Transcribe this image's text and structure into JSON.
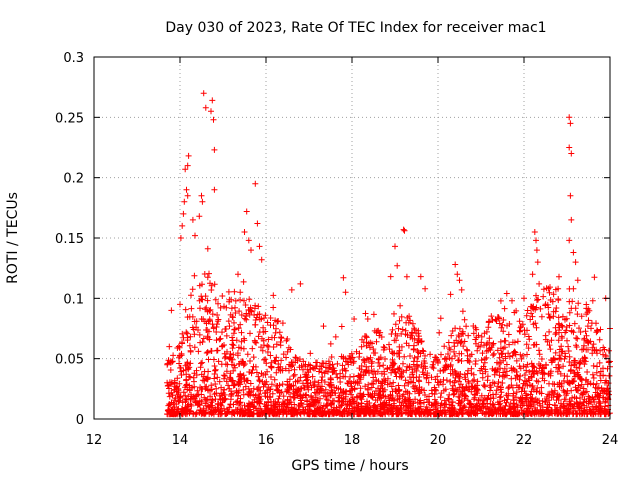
{
  "chart_data": {
    "type": "scatter",
    "title": "Day 030 of 2023, Rate Of TEC Index for receiver mac1",
    "xlabel": "GPS time / hours",
    "ylabel": "ROTI / TECUs",
    "xlim": [
      12,
      24
    ],
    "ylim": [
      0,
      0.3
    ],
    "xticks": [
      12,
      14,
      16,
      18,
      20,
      22,
      24
    ],
    "xtick_labels": [
      "12",
      "14",
      "16",
      "18",
      "20",
      "22",
      "24"
    ],
    "yticks": [
      0,
      0.05,
      0.1,
      0.15,
      0.2,
      0.25,
      0.3
    ],
    "ytick_labels": [
      "0",
      "0.05",
      "0.1",
      "0.15",
      "0.2",
      "0.25",
      "0.3"
    ],
    "grid": true,
    "marker": "+",
    "color": "#ff0000",
    "x_start": 13.7,
    "x_end": 24.0,
    "series": [
      {
        "name": "ROTI",
        "points": [
          [
            14.55,
            0.27
          ],
          [
            14.6,
            0.258
          ],
          [
            14.75,
            0.264
          ],
          [
            14.72,
            0.255
          ],
          [
            14.78,
            0.248
          ],
          [
            14.8,
            0.223
          ],
          [
            14.8,
            0.19
          ],
          [
            14.2,
            0.218
          ],
          [
            14.18,
            0.21
          ],
          [
            14.12,
            0.207
          ],
          [
            14.15,
            0.19
          ],
          [
            14.18,
            0.185
          ],
          [
            14.1,
            0.18
          ],
          [
            14.08,
            0.17
          ],
          [
            14.05,
            0.16
          ],
          [
            14.02,
            0.15
          ],
          [
            14.5,
            0.185
          ],
          [
            14.52,
            0.18
          ],
          [
            14.45,
            0.168
          ],
          [
            14.3,
            0.165
          ],
          [
            14.35,
            0.152
          ],
          [
            15.75,
            0.195
          ],
          [
            15.55,
            0.172
          ],
          [
            15.8,
            0.162
          ],
          [
            15.5,
            0.155
          ],
          [
            15.6,
            0.148
          ],
          [
            15.85,
            0.143
          ],
          [
            15.9,
            0.132
          ],
          [
            15.65,
            0.14
          ],
          [
            19.2,
            0.157
          ],
          [
            19.22,
            0.156
          ],
          [
            19.0,
            0.143
          ],
          [
            19.05,
            0.127
          ],
          [
            18.9,
            0.118
          ],
          [
            22.25,
            0.155
          ],
          [
            22.28,
            0.148
          ],
          [
            22.3,
            0.14
          ],
          [
            22.32,
            0.13
          ],
          [
            22.2,
            0.12
          ],
          [
            22.35,
            0.112
          ],
          [
            23.05,
            0.25
          ],
          [
            23.08,
            0.245
          ],
          [
            23.05,
            0.225
          ],
          [
            23.1,
            0.22
          ],
          [
            23.08,
            0.185
          ],
          [
            23.1,
            0.165
          ],
          [
            23.05,
            0.148
          ],
          [
            23.15,
            0.138
          ],
          [
            23.2,
            0.13
          ],
          [
            23.25,
            0.115
          ],
          [
            23.15,
            0.108
          ],
          [
            20.4,
            0.128
          ],
          [
            20.45,
            0.12
          ],
          [
            20.5,
            0.115
          ],
          [
            20.55,
            0.107
          ],
          [
            17.8,
            0.117
          ],
          [
            17.85,
            0.105
          ],
          [
            16.8,
            0.112
          ],
          [
            16.6,
            0.107
          ],
          [
            21.6,
            0.104
          ],
          [
            22.0,
            0.1
          ],
          [
            23.9,
            0.1
          ],
          [
            23.6,
            0.098
          ],
          [
            24.0,
            0.075
          ],
          [
            19.6,
            0.118
          ],
          [
            19.7,
            0.108
          ],
          [
            15.35,
            0.12
          ],
          [
            15.4,
            0.105
          ],
          [
            14.0,
            0.095
          ],
          [
            13.8,
            0.09
          ],
          [
            13.75,
            0.06
          ],
          [
            13.7,
            0.03
          ]
        ]
      }
    ]
  }
}
